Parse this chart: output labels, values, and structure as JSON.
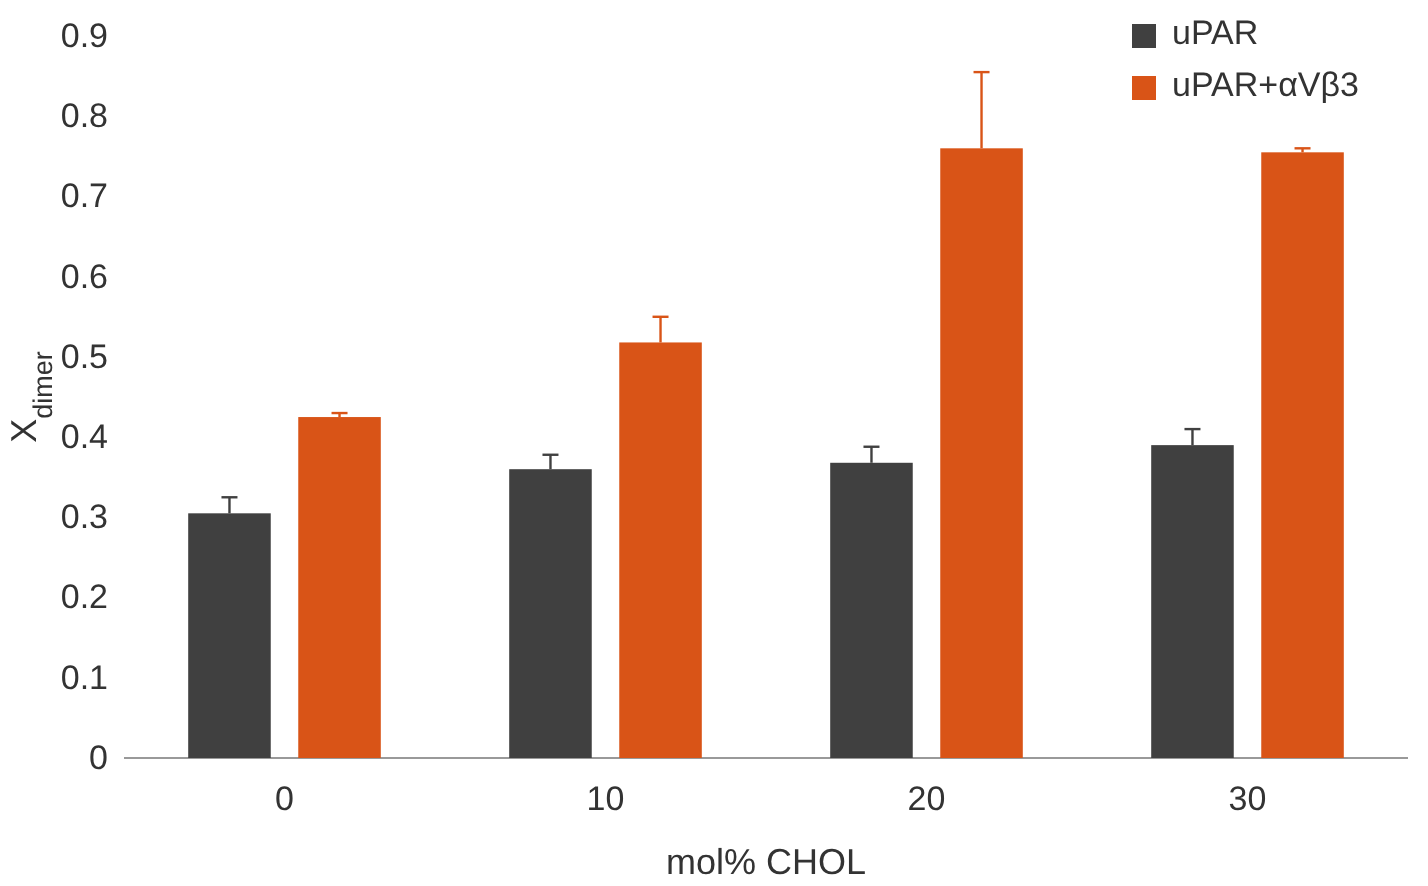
{
  "chart_data": {
    "type": "bar",
    "xlabel": "mol% CHOL",
    "ylabel": "X$_{dimer}$",
    "categories": [
      "0",
      "10",
      "20",
      "30"
    ],
    "series": [
      {
        "name": "uPAR",
        "color": "#404040",
        "values": [
          0.305,
          0.36,
          0.368,
          0.39
        ],
        "errors": [
          [
            0.305,
            0.325
          ],
          [
            0.36,
            0.378
          ],
          [
            0.368,
            0.388
          ],
          [
            0.39,
            0.41
          ]
        ]
      },
      {
        "name": "uPAR+αVβ3",
        "color": "#d95417",
        "values": [
          0.425,
          0.518,
          0.76,
          0.755
        ],
        "errors": [
          [
            0.425,
            0.43
          ],
          [
            0.518,
            0.55
          ],
          [
            0.76,
            0.855
          ],
          [
            0.755,
            0.76
          ]
        ]
      }
    ],
    "ylim": [
      0,
      0.9
    ],
    "yticks": [
      {
        "value": 0,
        "label": "0"
      },
      0.1,
      0.2,
      0.3,
      0.4,
      0.5,
      0.6,
      0.7,
      0.8,
      0.9
    ],
    "grid": false,
    "legend": "top right"
  }
}
